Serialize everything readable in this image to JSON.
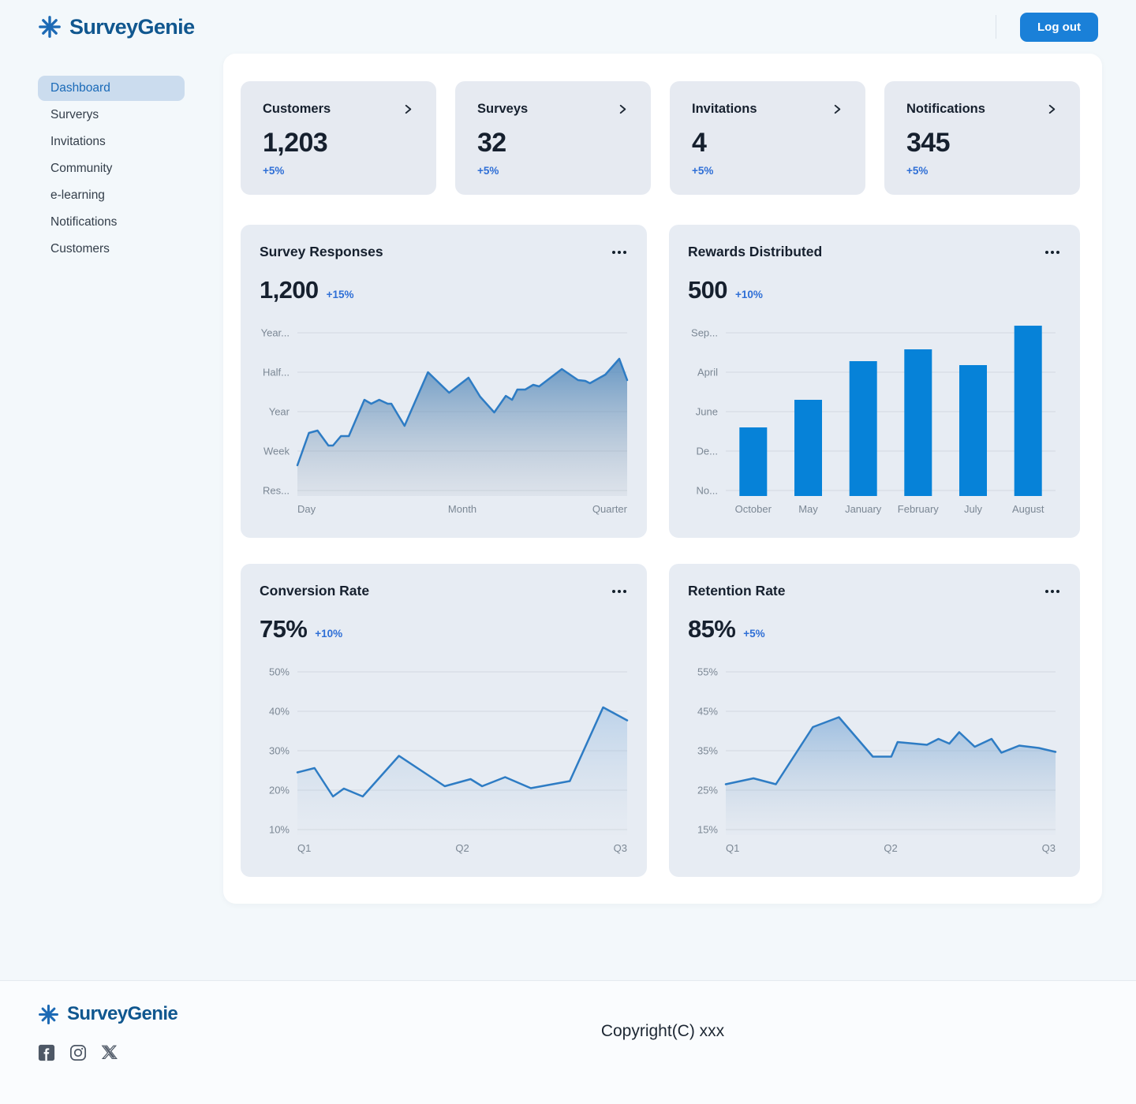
{
  "brand": {
    "name": "SurveyGenie"
  },
  "theme": {
    "accent_blue": "#1a80d8",
    "line_blue": "#2e7cc4",
    "bar_blue": "#0682d8",
    "delta_blue": "#2f6fd6",
    "grid_line": "#d3d9e0",
    "axis_label": "#7b8794",
    "logo_text_blue": "#10578f",
    "logo_star_blue": "#1d6ab5"
  },
  "icons": {
    "logo": "asterisk-icon",
    "stat_card_arrow": "chevron-right-icon",
    "chart_menu": "ellipsis-icon",
    "social": [
      "facebook-icon",
      "instagram-icon",
      "x-icon"
    ]
  },
  "header": {
    "logout_label": "Log out"
  },
  "sidebar": {
    "items": [
      {
        "label": "Dashboard",
        "active": true
      },
      {
        "label": "Surverys",
        "active": false
      },
      {
        "label": "Invitations",
        "active": false
      },
      {
        "label": "Community",
        "active": false
      },
      {
        "label": "e-learning",
        "active": false
      },
      {
        "label": "Notifications",
        "active": false
      },
      {
        "label": "Customers",
        "active": false
      }
    ]
  },
  "stats": [
    {
      "title": "Customers",
      "value": "1,203",
      "delta": "+5%"
    },
    {
      "title": "Surveys",
      "value": "32",
      "delta": "+5%"
    },
    {
      "title": "Invitations",
      "value": "4",
      "delta": "+5%"
    },
    {
      "title": "Notifications",
      "value": "345",
      "delta": "+5%"
    }
  ],
  "charts": {
    "survey_responses": {
      "type": "area",
      "title": "Survey Responses",
      "value": "1,200",
      "delta": "+15%",
      "y_labels": [
        "Year...",
        "Half...",
        "Year",
        "Week",
        "Res..."
      ],
      "x_labels": [
        "Day",
        "Month",
        "Quarter"
      ],
      "points": [
        [
          0,
          0.64
        ],
        [
          0.035,
          1.46
        ],
        [
          0.061,
          1.52
        ],
        [
          0.094,
          1.14
        ],
        [
          0.108,
          1.14
        ],
        [
          0.132,
          1.38
        ],
        [
          0.156,
          1.38
        ],
        [
          0.203,
          2.3
        ],
        [
          0.224,
          2.2
        ],
        [
          0.248,
          2.3
        ],
        [
          0.274,
          2.2
        ],
        [
          0.285,
          2.2
        ],
        [
          0.325,
          1.64
        ],
        [
          0.396,
          3.0
        ],
        [
          0.46,
          2.48
        ],
        [
          0.519,
          2.86
        ],
        [
          0.554,
          2.38
        ],
        [
          0.597,
          1.98
        ],
        [
          0.632,
          2.4
        ],
        [
          0.651,
          2.3
        ],
        [
          0.667,
          2.56
        ],
        [
          0.691,
          2.56
        ],
        [
          0.715,
          2.68
        ],
        [
          0.733,
          2.64
        ],
        [
          0.802,
          3.08
        ],
        [
          0.851,
          2.8
        ],
        [
          0.873,
          2.78
        ],
        [
          0.887,
          2.72
        ],
        [
          0.934,
          2.94
        ],
        [
          0.976,
          3.34
        ],
        [
          1,
          2.8
        ]
      ],
      "fill_top": "rgba(70,130,185,0.8)",
      "fill_bottom": "rgba(150,165,182,0.12)"
    },
    "rewards_distributed": {
      "type": "bar",
      "title": "Rewards Distributed",
      "value": "500",
      "delta": "+10%",
      "y_labels": [
        "Sep...",
        "April",
        "June",
        "De...",
        "No..."
      ],
      "categories": [
        "October",
        "May",
        "January",
        "February",
        "July",
        "August"
      ],
      "values": [
        1.74,
        2.44,
        3.42,
        3.72,
        3.32,
        4.32
      ]
    },
    "conversion_rate": {
      "type": "area",
      "title": "Conversion Rate",
      "value": "75%",
      "delta": "+10%",
      "y_labels": [
        "50%",
        "40%",
        "30%",
        "20%",
        "10%"
      ],
      "x_labels": [
        "Q1",
        "Q2",
        "Q3"
      ],
      "y_min": 10,
      "y_step": 10,
      "points": [
        [
          0,
          24.5
        ],
        [
          0.052,
          25.6
        ],
        [
          0.108,
          18.4
        ],
        [
          0.141,
          20.4
        ],
        [
          0.198,
          18.4
        ],
        [
          0.308,
          28.7
        ],
        [
          0.447,
          21
        ],
        [
          0.525,
          22.8
        ],
        [
          0.56,
          21
        ],
        [
          0.63,
          23.3
        ],
        [
          0.708,
          20.5
        ],
        [
          0.826,
          22.3
        ],
        [
          0.927,
          41
        ],
        [
          1,
          37.7
        ]
      ],
      "fill_top": "rgba(120,170,220,0.38)",
      "fill_bottom": "rgba(180,200,220,0.02)"
    },
    "retention_rate": {
      "type": "area",
      "title": "Retention Rate",
      "value": "85%",
      "delta": "+5%",
      "y_labels": [
        "55%",
        "45%",
        "35%",
        "25%",
        "15%"
      ],
      "x_labels": [
        "Q1",
        "Q2",
        "Q3"
      ],
      "y_min": 15,
      "y_step": 10,
      "points": [
        [
          0,
          26.5
        ],
        [
          0.084,
          28
        ],
        [
          0.152,
          26.5
        ],
        [
          0.264,
          41
        ],
        [
          0.343,
          43.5
        ],
        [
          0.446,
          33.5
        ],
        [
          0.502,
          33.5
        ],
        [
          0.521,
          37.2
        ],
        [
          0.572,
          36.8
        ],
        [
          0.61,
          36.5
        ],
        [
          0.645,
          38
        ],
        [
          0.678,
          36.8
        ],
        [
          0.708,
          39.7
        ],
        [
          0.755,
          36
        ],
        [
          0.806,
          38
        ],
        [
          0.836,
          34.5
        ],
        [
          0.89,
          36.3
        ],
        [
          0.949,
          35.7
        ],
        [
          1,
          34.7
        ]
      ],
      "fill_top": "rgba(100,155,210,0.55)",
      "fill_bottom": "rgba(170,190,210,0.03)"
    }
  },
  "footer": {
    "copyright": "Copyright(C) xxx"
  }
}
